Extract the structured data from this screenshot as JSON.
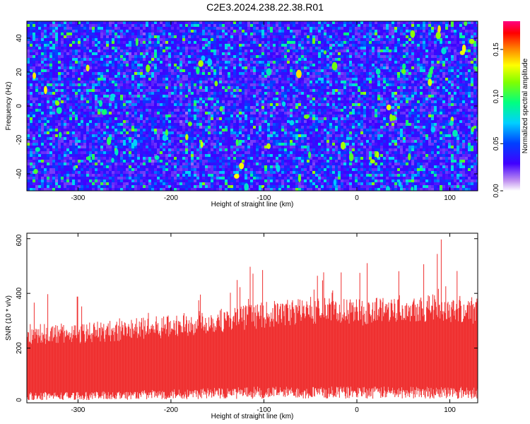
{
  "title": "C2E3.2024.238.22.38.R01",
  "chart_data": [
    {
      "type": "heatmap",
      "xlabel": "Height of straight line (km)",
      "ylabel": "Frequency (Hz)",
      "xlim": [
        -355,
        130
      ],
      "ylim": [
        -50,
        50
      ],
      "xticks": [
        -300,
        -200,
        -100,
        0,
        100
      ],
      "yticks": [
        -40,
        -20,
        0,
        20,
        40
      ],
      "colorbar": {
        "label": "Normalized spectral amplitude",
        "range": [
          0.0,
          0.18
        ],
        "ticks": [
          0.0,
          0.05,
          0.1,
          0.15
        ],
        "tick_labels": [
          "0.00",
          "0.05",
          "0.10",
          "0.15"
        ],
        "colormap": "rainbow (violet-blue-cyan-green-yellow-red-magenta)"
      },
      "background_level": 0.03,
      "description_level_range": [
        0.0,
        0.18
      ]
    },
    {
      "type": "area",
      "xlabel": "Height of straight line (km)",
      "ylabel": "SNR (10 * v/v)",
      "xlim": [
        -355,
        130
      ],
      "ylim": [
        0,
        620
      ],
      "xticks": [
        -300,
        -200,
        -100,
        0,
        100
      ],
      "yticks": [
        0,
        200,
        400,
        600
      ],
      "color": "#ef3030",
      "envelope": {
        "x": [
          -355,
          -300,
          -250,
          -200,
          -150,
          -100,
          -50,
          0,
          50,
          100,
          130
        ],
        "max": [
          420,
          400,
          380,
          400,
          470,
          520,
          560,
          540,
          600,
          620,
          470
        ],
        "typical_high": [
          250,
          255,
          265,
          280,
          300,
          320,
          340,
          330,
          350,
          345,
          335
        ],
        "typical_low": [
          20,
          20,
          22,
          25,
          28,
          30,
          30,
          30,
          30,
          30,
          30
        ]
      }
    }
  ]
}
